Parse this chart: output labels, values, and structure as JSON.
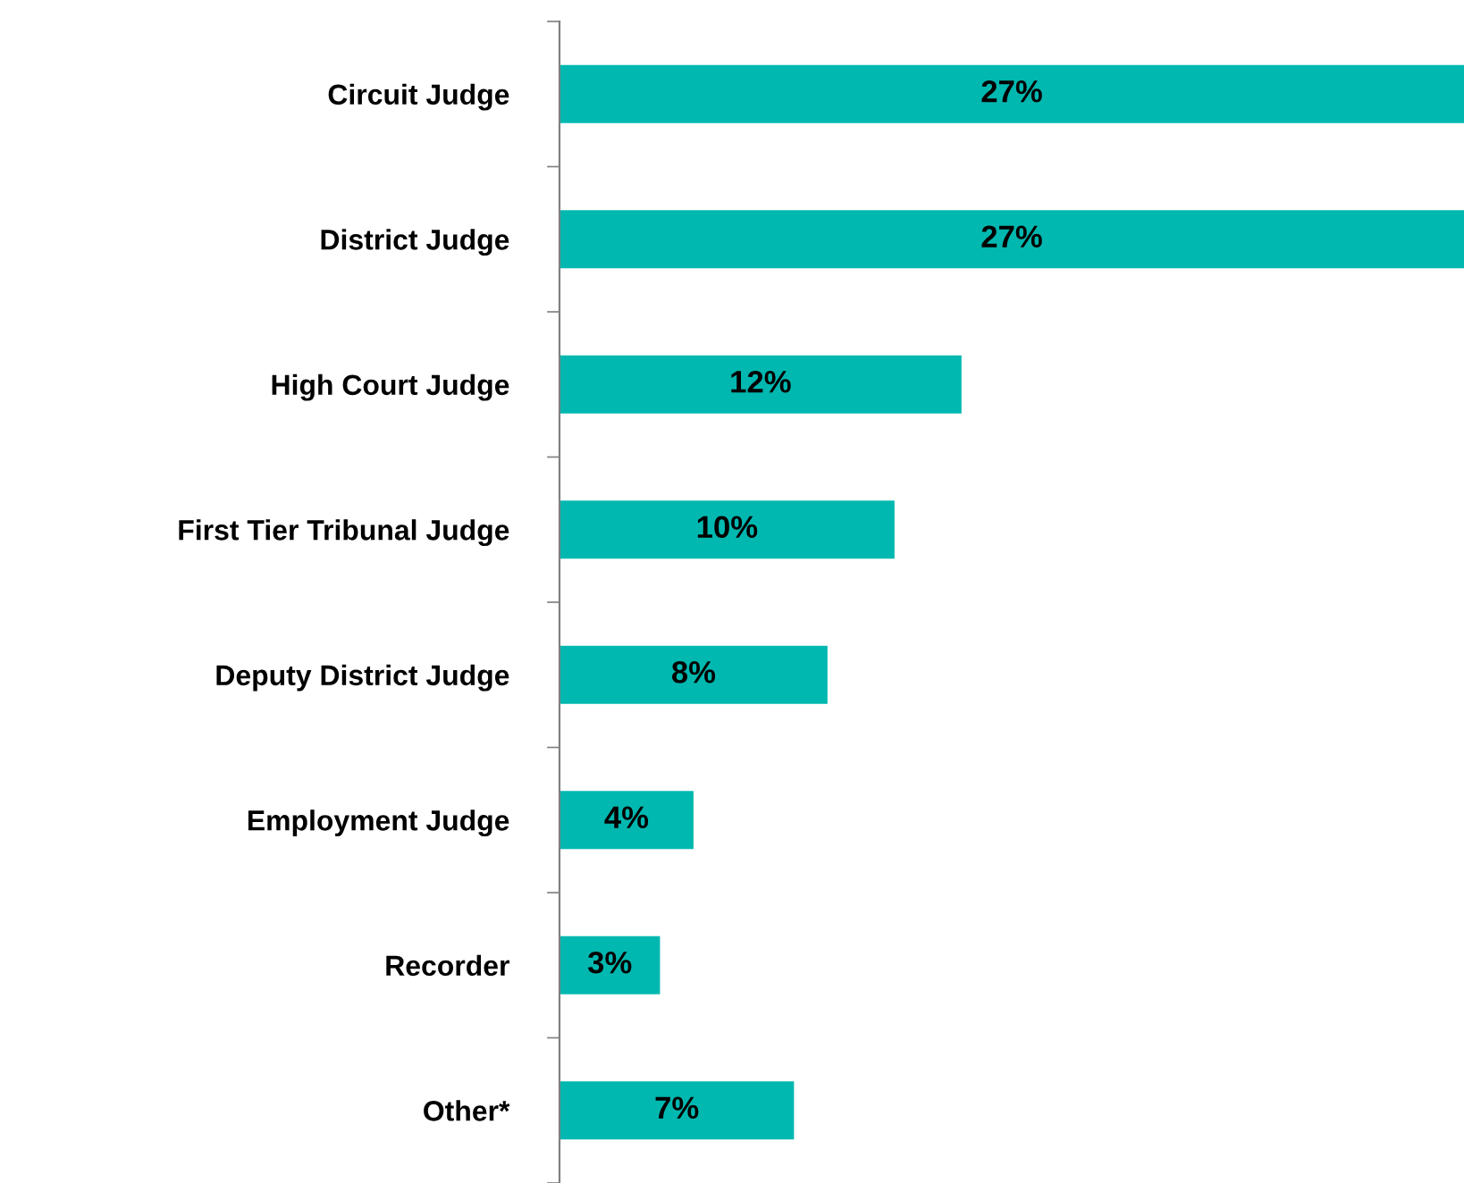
{
  "chart_data": {
    "type": "bar",
    "orientation": "horizontal",
    "categories": [
      "Circuit Judge",
      "District Judge",
      "High Court Judge",
      "First Tier Tribunal Judge",
      "Deputy District Judge",
      "Employment Judge",
      "Recorder",
      "Other*"
    ],
    "values": [
      27,
      27,
      12,
      10,
      8,
      4,
      3,
      7
    ],
    "value_labels": [
      "27%",
      "27%",
      "12%",
      "10%",
      "8%",
      "4%",
      "3%",
      "7%"
    ],
    "color": "#00b8b0",
    "tick_labels": "y",
    "grid": false,
    "legend": false
  }
}
